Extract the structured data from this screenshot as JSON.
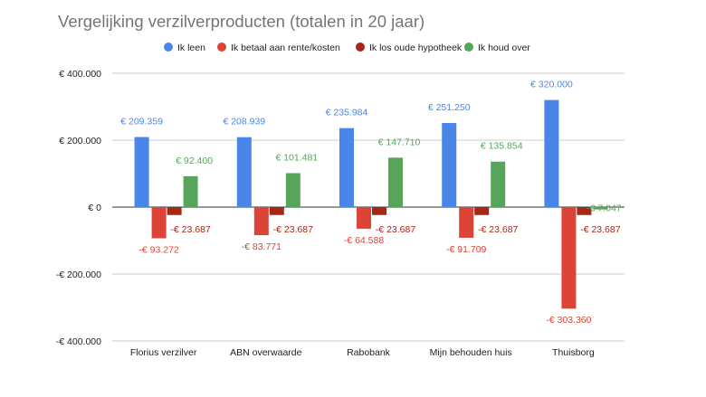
{
  "chart_data": {
    "type": "bar",
    "title": "Vergelijking verzilverproducten (totalen in 20 jaar)",
    "xlabel": "",
    "ylabel": "",
    "ylim": [
      -400000,
      400000
    ],
    "yticks": [
      400000,
      200000,
      0,
      -200000,
      -400000
    ],
    "ytick_labels": [
      "€ 400.000",
      "€ 200.000",
      "€ 0",
      "-€ 200.000",
      "-€ 400.000"
    ],
    "grid": true,
    "legend_position": "top",
    "categories": [
      "Florius verzilver",
      "ABN overwaarde",
      "Rabobank",
      "Mijn behouden huis",
      "Thuisborg"
    ],
    "series": [
      {
        "name": "Ik leen",
        "color": "#4a86e8",
        "values": [
          209359,
          208939,
          235984,
          251250,
          320000
        ],
        "labels": [
          "€ 209.359",
          "€ 208.939",
          "€ 235.984",
          "€ 251.250",
          "€ 320.000"
        ]
      },
      {
        "name": "Ik betaal aan rente/kosten",
        "color": "#db4437",
        "values": [
          -93272,
          -83771,
          -64588,
          -91709,
          -303360
        ],
        "labels": [
          "-€ 93.272",
          "-€ 83.771",
          "-€ 64.588",
          "-€ 91.709",
          "-€ 303.360"
        ]
      },
      {
        "name": "Ik los oude hypotheek af",
        "color": "#a52714",
        "values": [
          -23687,
          -23687,
          -23687,
          -23687,
          -23687
        ],
        "labels": [
          "-€ 23.687",
          "-€ 23.687",
          "-€ 23.687",
          "-€ 23.687",
          "-€ 23.687"
        ]
      },
      {
        "name": "Ik houd over",
        "color": "#57a55a",
        "values": [
          92400,
          101481,
          147710,
          135854,
          -7047
        ],
        "labels": [
          "€ 92.400",
          "€ 101.481",
          "€ 147.710",
          "€ 135.854",
          "-€ 7.047"
        ]
      }
    ]
  }
}
